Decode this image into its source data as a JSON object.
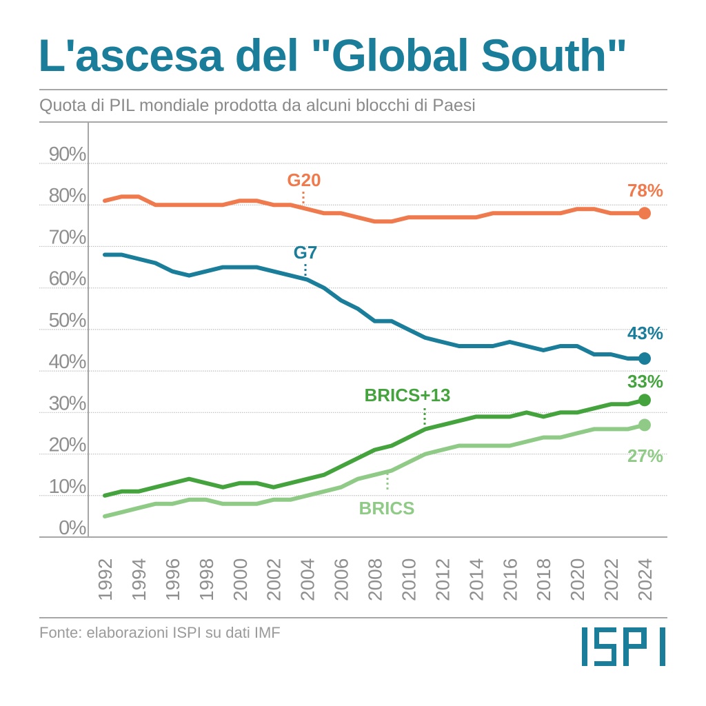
{
  "header": {
    "title": "L'ascesa del \"Global South\"",
    "subtitle": "Quota di PIL mondiale prodotta da alcuni blocchi di Paesi"
  },
  "footer": {
    "source": "Fonte: elaborazioni ISPI su dati IMF",
    "logo": "ISPI"
  },
  "colors": {
    "title": "#1a7d9a",
    "g20": "#ef7a4d",
    "g7": "#1a7d9a",
    "brics13": "#45a33e",
    "brics": "#8fcb86",
    "axis_text": "#8a8a8a",
    "grid": "#bdbdbd"
  },
  "chart_data": {
    "type": "line",
    "title": "L'ascesa del \"Global South\"",
    "subtitle": "Quota di PIL mondiale prodotta da alcuni blocchi di Paesi",
    "xlabel": "",
    "ylabel": "",
    "ylim": [
      0,
      90
    ],
    "yticks": [
      0,
      10,
      20,
      30,
      40,
      50,
      60,
      70,
      80,
      90
    ],
    "ytick_labels": [
      "0%",
      "10%",
      "20%",
      "30%",
      "40%",
      "50%",
      "60%",
      "70%",
      "80%",
      "90%"
    ],
    "xlim": [
      1992,
      2024
    ],
    "xtick_labels": [
      "1992",
      "1994",
      "1996",
      "1998",
      "2000",
      "2002",
      "2004",
      "2006",
      "2008",
      "2010",
      "2012",
      "2014",
      "2016",
      "2018",
      "2020",
      "2022",
      "2024"
    ],
    "grid": true,
    "legend": "inline labels",
    "x": [
      1992,
      1993,
      1994,
      1995,
      1996,
      1997,
      1998,
      1999,
      2000,
      2001,
      2002,
      2003,
      2004,
      2005,
      2006,
      2007,
      2008,
      2009,
      2010,
      2011,
      2012,
      2013,
      2014,
      2015,
      2016,
      2017,
      2018,
      2019,
      2020,
      2021,
      2022,
      2023,
      2024
    ],
    "series": [
      {
        "key": "g20",
        "name": "G20",
        "end_label": "78%",
        "label_year": 2004,
        "label_position": "above",
        "values": [
          81,
          82,
          82,
          80,
          80,
          80,
          80,
          80,
          81,
          81,
          80,
          80,
          79,
          78,
          78,
          77,
          76,
          76,
          77,
          77,
          77,
          77,
          77,
          78,
          78,
          78,
          78,
          78,
          79,
          79,
          78,
          78,
          78
        ]
      },
      {
        "key": "g7",
        "name": "G7",
        "end_label": "43%",
        "label_year": 2004,
        "label_position": "above",
        "values": [
          68,
          68,
          67,
          66,
          64,
          63,
          64,
          65,
          65,
          65,
          64,
          63,
          62,
          60,
          57,
          55,
          52,
          52,
          50,
          48,
          47,
          46,
          46,
          46,
          47,
          46,
          45,
          46,
          46,
          44,
          44,
          43,
          43
        ]
      },
      {
        "key": "brics13",
        "name": "BRICS+13",
        "end_label": "33%",
        "label_year": 2011,
        "label_position": "above",
        "values": [
          10,
          11,
          11,
          12,
          13,
          14,
          13,
          12,
          13,
          13,
          12,
          13,
          14,
          15,
          17,
          19,
          21,
          22,
          24,
          26,
          27,
          28,
          29,
          29,
          29,
          30,
          29,
          30,
          30,
          31,
          32,
          32,
          33
        ]
      },
      {
        "key": "brics",
        "name": "BRICS",
        "end_label": "27%",
        "label_year": 2009,
        "label_position": "below",
        "values": [
          5,
          6,
          7,
          8,
          8,
          9,
          9,
          8,
          8,
          8,
          9,
          9,
          10,
          11,
          12,
          14,
          15,
          16,
          18,
          20,
          21,
          22,
          22,
          22,
          22,
          23,
          24,
          24,
          25,
          26,
          26,
          26,
          27
        ]
      }
    ]
  }
}
